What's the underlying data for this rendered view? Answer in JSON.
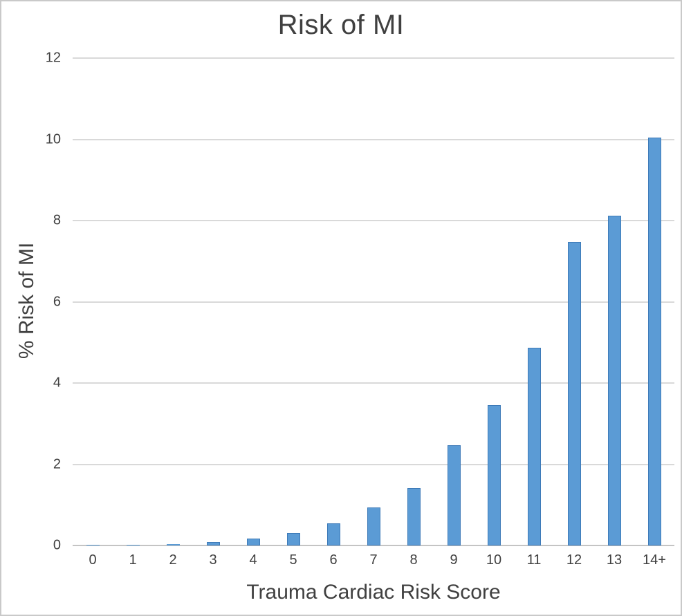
{
  "figure": {
    "border_color": "#c9c9c9",
    "background": "#ffffff"
  },
  "chart_data": {
    "type": "bar",
    "title": "Risk of MI",
    "xlabel": "Trauma Cardiac Risk Score",
    "ylabel": "% Risk of MI",
    "categories": [
      "0",
      "1",
      "2",
      "3",
      "4",
      "5",
      "6",
      "7",
      "8",
      "9",
      "10",
      "11",
      "12",
      "13",
      "14+"
    ],
    "values": [
      0.01,
      0.02,
      0.04,
      0.08,
      0.17,
      0.3,
      0.54,
      0.93,
      1.42,
      2.47,
      3.45,
      4.86,
      7.47,
      8.12,
      10.05
    ],
    "ylim": [
      0,
      12
    ],
    "yticks": [
      0,
      2,
      4,
      6,
      8,
      10,
      12
    ],
    "grid": true,
    "legend": false,
    "bar_color": "#5b9bd5",
    "bar_border_color": "#3d7ab8",
    "gridline_color": "#d9d9d9",
    "axis_line_color": "#c4c4c4",
    "text_color": "#404040"
  }
}
